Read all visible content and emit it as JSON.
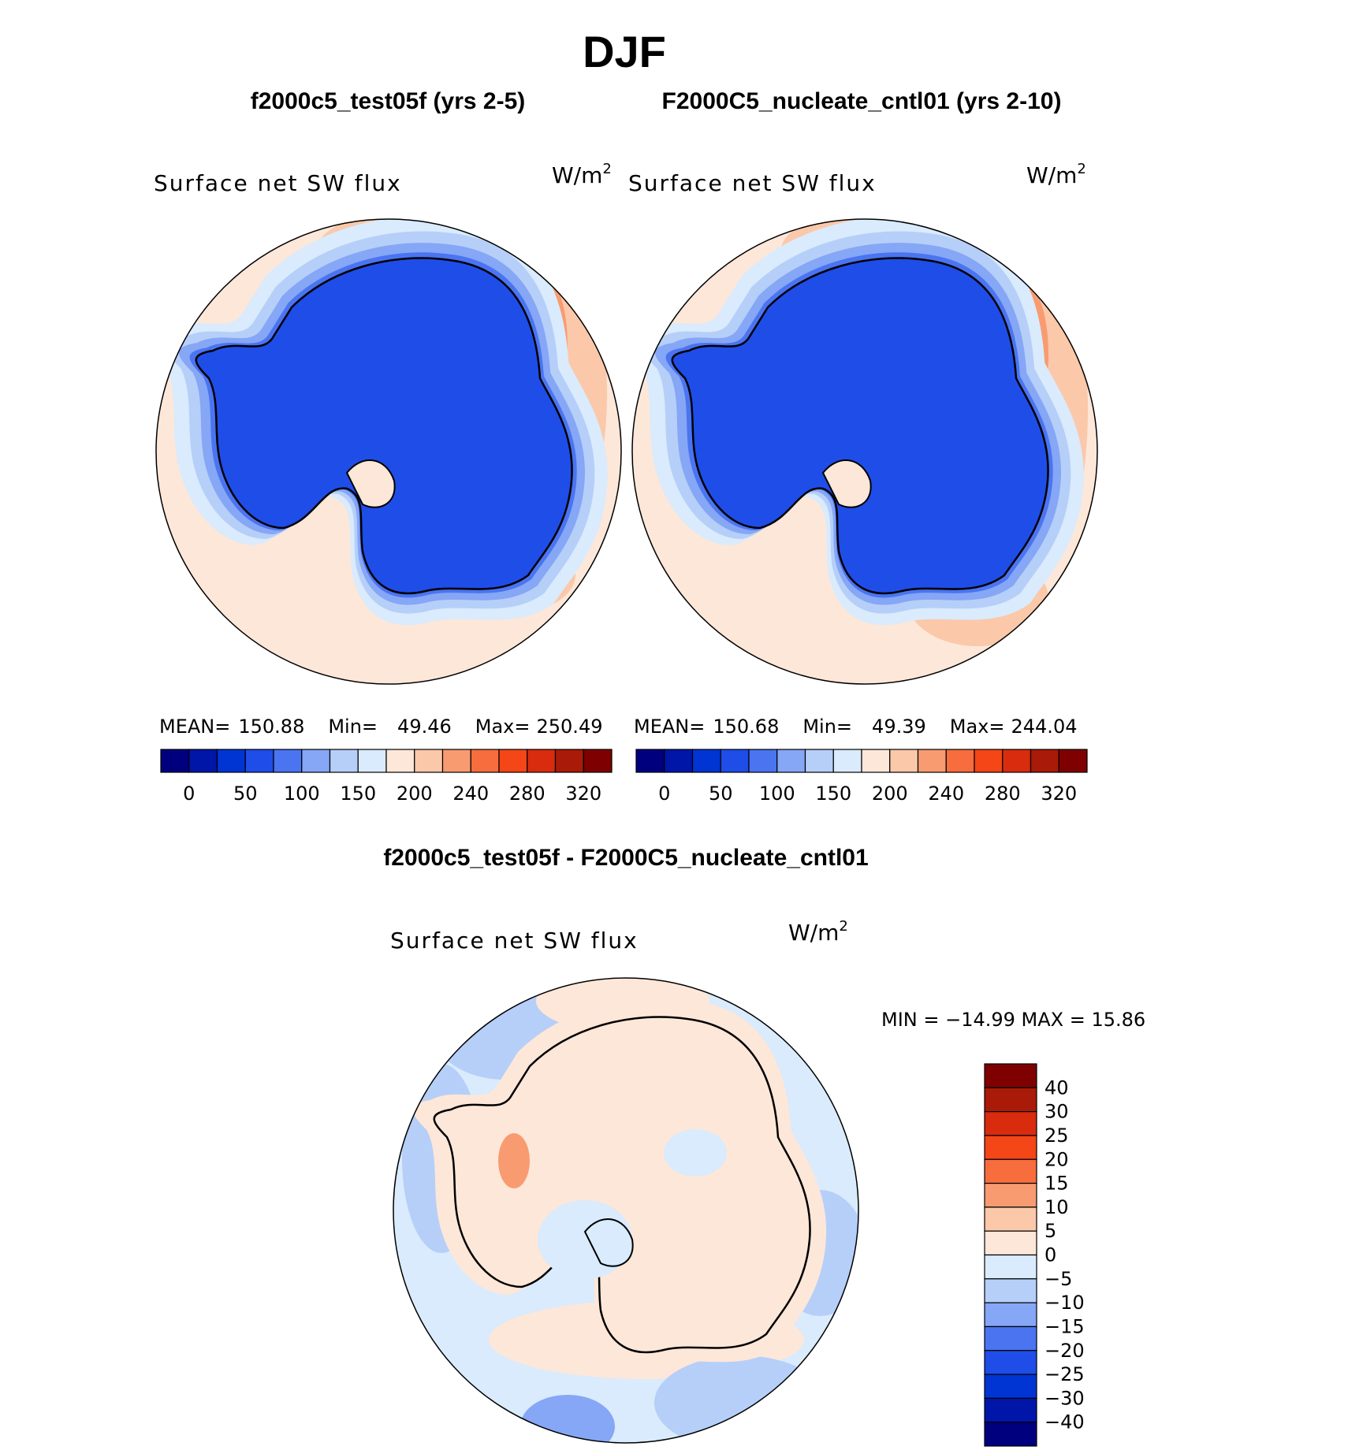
{
  "main_title": "DJF",
  "left_panel": {
    "case_title": "f2000c5_test05f (yrs 2-5)",
    "variable": "Surface net SW flux",
    "units_base": "W/m",
    "units_exp": "2",
    "stats": {
      "mean_label": "MEAN=",
      "mean": "150.88",
      "min_label": "Min=",
      "min": "49.46",
      "max_label": "Max=",
      "max": "250.49"
    }
  },
  "right_panel": {
    "case_title": "F2000C5_nucleate_cntl01 (yrs 2-10)",
    "variable": "Surface net SW flux",
    "units_base": "W/m",
    "units_exp": "2",
    "stats": {
      "mean_label": "MEAN=",
      "mean": "150.68",
      "min_label": "Min=",
      "min": "49.39",
      "max_label": "Max=",
      "max": "244.04"
    }
  },
  "diff_panel": {
    "title": "f2000c5_test05f - F2000C5_nucleate_cntl01",
    "variable": "Surface net SW flux",
    "units_base": "W/m",
    "units_exp": "2",
    "minmax": "MIN = −14.99  MAX =   15.86"
  },
  "chart_data": [
    {
      "type": "heatmap",
      "projection": "south-polar-stereographic",
      "title": "f2000c5_test05f (yrs 2-5)",
      "variable": "Surface net SW flux",
      "units": "W/m2",
      "stats": {
        "mean": 150.88,
        "min": 49.46,
        "max": 250.49
      },
      "colorbar_labels": [
        "0",
        "50",
        "100",
        "150",
        "200",
        "240",
        "280",
        "320"
      ],
      "colorbar_colors": [
        "#00007f",
        "#0016a8",
        "#0035d4",
        "#1f4de8",
        "#4a74f0",
        "#86a6f6",
        "#b6cff9",
        "#d9ebfc",
        "#fde7d9",
        "#fbc8aa",
        "#f89b71",
        "#f76d3e",
        "#f44617",
        "#d92b0e",
        "#aa1a08",
        "#7f0000"
      ],
      "field_regions": {
        "antarctic_continent": "low (~50-100)",
        "sea_ice_ring": "100-200",
        "ocean": "200-280"
      }
    },
    {
      "type": "heatmap",
      "projection": "south-polar-stereographic",
      "title": "F2000C5_nucleate_cntl01 (yrs 2-10)",
      "variable": "Surface net SW flux",
      "units": "W/m2",
      "stats": {
        "mean": 150.68,
        "min": 49.39,
        "max": 244.04
      },
      "colorbar_labels": [
        "0",
        "50",
        "100",
        "150",
        "200",
        "240",
        "280",
        "320"
      ],
      "colorbar_colors": [
        "#00007f",
        "#0016a8",
        "#0035d4",
        "#1f4de8",
        "#4a74f0",
        "#86a6f6",
        "#b6cff9",
        "#d9ebfc",
        "#fde7d9",
        "#fbc8aa",
        "#f89b71",
        "#f76d3e",
        "#f44617",
        "#d92b0e",
        "#aa1a08",
        "#7f0000"
      ],
      "field_regions": {
        "antarctic_continent": "low (~50-100)",
        "sea_ice_ring": "100-200",
        "ocean": "200-280"
      }
    },
    {
      "type": "heatmap",
      "projection": "south-polar-stereographic",
      "title": "f2000c5_test05f - F2000C5_nucleate_cntl01",
      "variable": "Surface net SW flux",
      "units": "W/m2",
      "stats": {
        "min": -14.99,
        "max": 15.86
      },
      "colorbar_labels": [
        "40",
        "30",
        "25",
        "20",
        "15",
        "10",
        "5",
        "0",
        "−5",
        "−10",
        "−15",
        "−20",
        "−25",
        "−30",
        "−40"
      ],
      "colorbar_colors": [
        "#7f0000",
        "#aa1a08",
        "#d92b0e",
        "#f44617",
        "#f76d3e",
        "#f89b71",
        "#fbc8aa",
        "#fde7d9",
        "#d9ebfc",
        "#b6cff9",
        "#86a6f6",
        "#4a74f0",
        "#1f4de8",
        "#0035d4",
        "#0016a8",
        "#00007f"
      ],
      "field_regions": {
        "mostly": "-5 to 5",
        "ocean_patches": "-15 to 10"
      }
    }
  ]
}
